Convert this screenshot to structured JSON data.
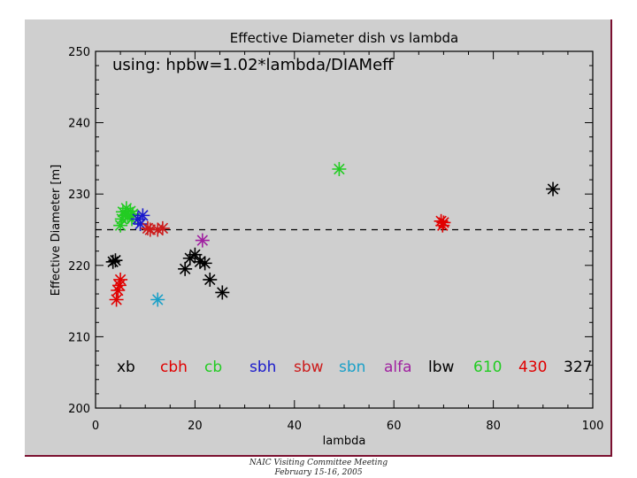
{
  "colors": {
    "background": "#cfcfcf",
    "frame_border": "#7b1030",
    "xb": "#000000",
    "cbh": "#e00000",
    "cb": "#22cc22",
    "sbh": "#1a1acc",
    "sbw": "#cc1a1a",
    "sbn": "#1aa0c8",
    "alfa": "#a020a0",
    "lbw": "#000000",
    "610": "#22cc22",
    "430": "#e00000",
    "327": "#000000"
  },
  "footer": {
    "line1": "NAIC Visiting Committee Meeting",
    "line2": "February 15-16, 2005"
  },
  "chart_data": {
    "type": "scatter",
    "title": "Effective Diameter dish vs lambda",
    "subtitle": "using: hpbw=1.02*lambda/DIAMeff",
    "xlabel": "lambda",
    "ylabel": "Effective Diameter [m]",
    "xlim": [
      0,
      100
    ],
    "ylim": [
      200,
      250
    ],
    "xticks": [
      0,
      20,
      40,
      60,
      80,
      100
    ],
    "yticks": [
      200,
      210,
      220,
      230,
      240,
      250
    ],
    "reference_line": 225,
    "legend_position": "bottom, in-plot row",
    "legend": [
      "xb",
      "cbh",
      "cb",
      "sbh",
      "sbw",
      "sbn",
      "alfa",
      "lbw",
      "610",
      "430",
      "327"
    ],
    "series": [
      {
        "name": "xb",
        "color_key": "xb",
        "points": [
          [
            3.5,
            220.5
          ],
          [
            4.0,
            220.7
          ]
        ]
      },
      {
        "name": "cbh",
        "color_key": "cbh",
        "points": [
          [
            4.2,
            215.2
          ],
          [
            4.5,
            216.5
          ],
          [
            4.8,
            217.2
          ],
          [
            5.0,
            218.0
          ]
        ]
      },
      {
        "name": "cb",
        "color_key": "cb",
        "points": [
          [
            5.0,
            225.6
          ],
          [
            5.3,
            226.5
          ],
          [
            5.5,
            227.5
          ],
          [
            6.0,
            227.0
          ],
          [
            6.5,
            226.8
          ],
          [
            7.0,
            227.6
          ],
          [
            7.3,
            226.5
          ],
          [
            7.5,
            227.2
          ],
          [
            6.2,
            228.0
          ]
        ]
      },
      {
        "name": "sbh",
        "color_key": "sbh",
        "points": [
          [
            8.5,
            226.5
          ],
          [
            9.5,
            227.0
          ],
          [
            9.0,
            225.8
          ]
        ]
      },
      {
        "name": "sbw",
        "color_key": "sbw",
        "points": [
          [
            10.5,
            225.2
          ],
          [
            11.0,
            225.0
          ],
          [
            12.5,
            225.0
          ],
          [
            13.5,
            225.2
          ]
        ]
      },
      {
        "name": "sbn",
        "color_key": "sbn",
        "points": [
          [
            12.5,
            215.2
          ]
        ]
      },
      {
        "name": "alfa",
        "color_key": "alfa",
        "points": [
          [
            21.5,
            223.5
          ]
        ]
      },
      {
        "name": "lbw",
        "color_key": "lbw",
        "points": [
          [
            18.0,
            219.5
          ],
          [
            19.0,
            221.0
          ],
          [
            20.0,
            221.5
          ],
          [
            21.0,
            220.5
          ],
          [
            22.0,
            220.3
          ],
          [
            23.0,
            218.0
          ],
          [
            25.5,
            216.2
          ]
        ]
      },
      {
        "name": "610",
        "color_key": "610",
        "points": [
          [
            49.0,
            233.5
          ]
        ]
      },
      {
        "name": "430",
        "color_key": "430",
        "points": [
          [
            69.5,
            226.2
          ],
          [
            69.8,
            225.6
          ],
          [
            70.0,
            226.0
          ]
        ]
      },
      {
        "name": "327",
        "color_key": "327",
        "points": [
          [
            92.0,
            230.7
          ]
        ]
      }
    ]
  }
}
